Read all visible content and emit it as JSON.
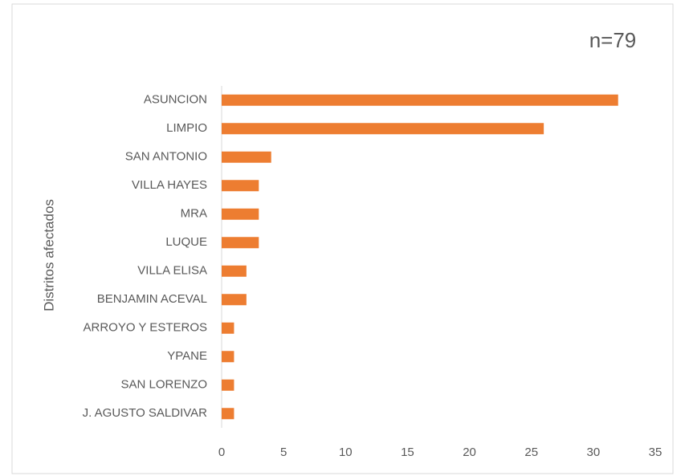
{
  "chart_data": {
    "type": "bar",
    "orientation": "horizontal",
    "annotation": "n=79",
    "y_label": "Distritos afectados",
    "categories": [
      "ASUNCION",
      "LIMPIO",
      "SAN ANTONIO",
      "VILLA HAYES",
      "MRA",
      "LUQUE",
      "VILLA ELISA",
      "BENJAMIN ACEVAL",
      "ARROYO Y ESTEROS",
      "YPANE",
      "SAN LORENZO",
      "J. AGUSTO SALDIVAR"
    ],
    "values": [
      32,
      26,
      4,
      3,
      3,
      3,
      2,
      2,
      1,
      1,
      1,
      1
    ],
    "color": "#ed7d31",
    "xlim": [
      0,
      35
    ],
    "xticks": [
      0,
      5,
      10,
      15,
      20,
      25,
      30,
      35
    ],
    "grid": false
  }
}
